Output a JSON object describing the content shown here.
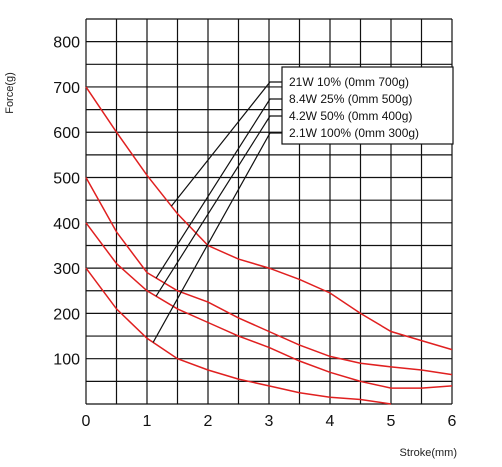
{
  "chart_data": {
    "type": "line",
    "title": "",
    "xlabel": "Stroke(mm)",
    "ylabel": "Force(g)",
    "xlim": [
      0,
      6
    ],
    "ylim": [
      0,
      850
    ],
    "xticks": [
      0,
      1,
      2,
      3,
      4,
      5,
      6
    ],
    "yticks": [
      100,
      200,
      300,
      400,
      500,
      600,
      700,
      800
    ],
    "grid": true,
    "x_grid_step": 0.5,
    "y_grid_step": 50,
    "line_color": "#e02020",
    "legend_position": "top-right",
    "series": [
      {
        "name": "21W 10% (0mm 700g)",
        "leader_x": 1.4,
        "x": [
          0,
          0.5,
          1,
          1.5,
          2,
          2.5,
          3,
          3.5,
          4,
          4.5,
          5,
          5.5,
          6
        ],
        "y": [
          700,
          600,
          505,
          420,
          350,
          320,
          300,
          275,
          245,
          200,
          160,
          140,
          120
        ]
      },
      {
        "name": "8.4W 25% (0mm 500g)",
        "leader_x": 1.15,
        "x": [
          0,
          0.5,
          1,
          1.5,
          2,
          2.5,
          3,
          3.5,
          4,
          4.5,
          5,
          5.5,
          6
        ],
        "y": [
          500,
          380,
          290,
          250,
          225,
          190,
          160,
          130,
          105,
          90,
          82,
          75,
          65
        ]
      },
      {
        "name": "4.2W 50% (0mm 400g)",
        "leader_x": 1.15,
        "x": [
          0,
          0.5,
          1,
          1.5,
          2,
          2.5,
          3,
          3.5,
          4,
          4.5,
          5,
          5.5,
          6
        ],
        "y": [
          400,
          310,
          250,
          210,
          180,
          150,
          125,
          95,
          70,
          50,
          35,
          35,
          40
        ]
      },
      {
        "name": "2.1W 100% (0mm 300g)",
        "leader_x": 1.1,
        "x": [
          0,
          0.5,
          1,
          1.5,
          2,
          2.5,
          3,
          3.5,
          4,
          4.5,
          5
        ],
        "y": [
          300,
          210,
          145,
          100,
          75,
          55,
          40,
          25,
          15,
          10,
          0
        ]
      }
    ]
  }
}
